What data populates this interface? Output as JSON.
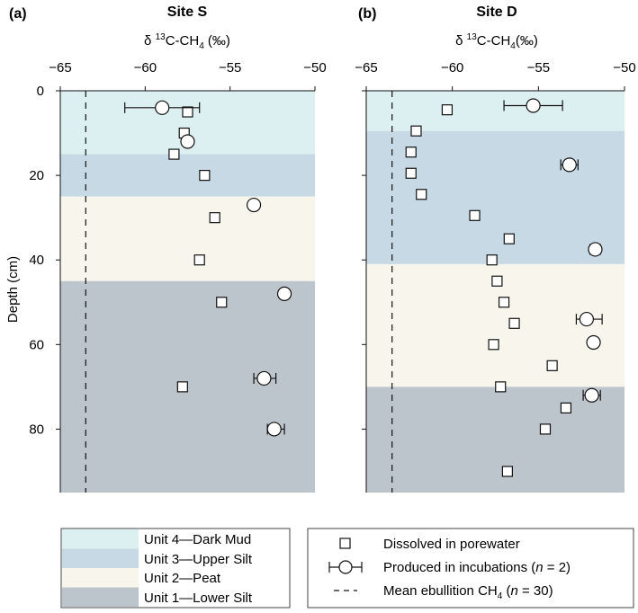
{
  "chart_data": [
    {
      "type": "scatter",
      "panel_label": "(a)",
      "title": "Site S",
      "xlabel_prefix": "δ ",
      "xlabel_sup": "13",
      "xlabel_mid": "C-CH",
      "xlabel_sub": "4",
      "xlabel_suffix": " (‰)",
      "ylabel": "Depth (cm)",
      "xlim": [
        -65,
        -50
      ],
      "ylim": [
        0,
        95
      ],
      "xticks": [
        -65,
        -60,
        -55,
        -50
      ],
      "yticks": [
        0,
        20,
        40,
        60,
        80
      ],
      "xaxis_position": "top",
      "y_inverted": true,
      "ebullition_mean": -63.5,
      "units": [
        {
          "name": "Unit 4—Dark Mud",
          "from": 0,
          "to": 15
        },
        {
          "name": "Unit 3—Upper Silt",
          "from": 15,
          "to": 25
        },
        {
          "name": "Unit 2—Peat",
          "from": 25,
          "to": 45
        },
        {
          "name": "Unit 1—Lower Silt",
          "from": 45,
          "to": 95
        }
      ],
      "series": [
        {
          "name": "Dissolved in porewater",
          "marker": "square",
          "points": [
            {
              "x": -57.5,
              "y": 5
            },
            {
              "x": -57.7,
              "y": 10
            },
            {
              "x": -58.3,
              "y": 15
            },
            {
              "x": -56.5,
              "y": 20
            },
            {
              "x": -55.9,
              "y": 30
            },
            {
              "x": -56.8,
              "y": 40
            },
            {
              "x": -55.5,
              "y": 50
            },
            {
              "x": -57.8,
              "y": 70
            }
          ]
        },
        {
          "name": "Produced in incubations (n = 2)",
          "marker": "circle",
          "points": [
            {
              "x": -59.0,
              "y": 4,
              "xmin": -61.2,
              "xmax": -56.8
            },
            {
              "x": -57.5,
              "y": 12
            },
            {
              "x": -53.6,
              "y": 27
            },
            {
              "x": -51.8,
              "y": 48
            },
            {
              "x": -53.0,
              "y": 68,
              "xmin": -53.6,
              "xmax": -52.3
            },
            {
              "x": -52.4,
              "y": 80,
              "xmin": -52.8,
              "xmax": -51.8
            }
          ]
        }
      ]
    },
    {
      "type": "scatter",
      "panel_label": "(b)",
      "title": "Site D",
      "xlabel_prefix": "δ ",
      "xlabel_sup": "13",
      "xlabel_mid": "C-CH",
      "xlabel_sub": "4",
      "xlabel_suffix": "(‰)",
      "ylabel": "",
      "xlim": [
        -65,
        -50
      ],
      "ylim": [
        0,
        95
      ],
      "xticks": [
        -65,
        -60,
        -55,
        -50
      ],
      "yticks": [
        0,
        20,
        40,
        60,
        80
      ],
      "xaxis_position": "top",
      "y_inverted": true,
      "ebullition_mean": -63.5,
      "units": [
        {
          "name": "Unit 4—Dark Mud",
          "from": 0,
          "to": 9.5
        },
        {
          "name": "Unit 3—Upper Silt",
          "from": 9.5,
          "to": 41
        },
        {
          "name": "Unit 2—Peat",
          "from": 41,
          "to": 70
        },
        {
          "name": "Unit 1—Lower Silt",
          "from": 70,
          "to": 95
        }
      ],
      "series": [
        {
          "name": "Dissolved in porewater",
          "marker": "square",
          "points": [
            {
              "x": -60.3,
              "y": 4.5
            },
            {
              "x": -62.1,
              "y": 9.5
            },
            {
              "x": -62.4,
              "y": 14.5
            },
            {
              "x": -62.4,
              "y": 19.5
            },
            {
              "x": -61.8,
              "y": 24.5
            },
            {
              "x": -58.7,
              "y": 29.5
            },
            {
              "x": -56.7,
              "y": 35
            },
            {
              "x": -57.7,
              "y": 40
            },
            {
              "x": -57.4,
              "y": 45
            },
            {
              "x": -57.0,
              "y": 50
            },
            {
              "x": -56.4,
              "y": 55
            },
            {
              "x": -57.6,
              "y": 60
            },
            {
              "x": -54.2,
              "y": 65
            },
            {
              "x": -57.2,
              "y": 70
            },
            {
              "x": -53.4,
              "y": 75
            },
            {
              "x": -54.6,
              "y": 80
            },
            {
              "x": -56.8,
              "y": 90
            }
          ]
        },
        {
          "name": "Produced in incubations (n = 2)",
          "marker": "circle",
          "points": [
            {
              "x": -55.3,
              "y": 3.5,
              "xmin": -57.0,
              "xmax": -53.6
            },
            {
              "x": -53.2,
              "y": 17.5,
              "xmin": -53.7,
              "xmax": -52.7
            },
            {
              "x": -51.7,
              "y": 37.5,
              "xmin": -52.0,
              "xmax": -51.4
            },
            {
              "x": -52.2,
              "y": 54,
              "xmin": -52.8,
              "xmax": -51.3
            },
            {
              "x": -51.8,
              "y": 59.5
            },
            {
              "x": -51.9,
              "y": 72,
              "xmin": -52.4,
              "xmax": -51.4
            }
          ]
        }
      ]
    }
  ],
  "colors": {
    "unit4": "#dceff1",
    "unit3": "#c6d9e4",
    "unit2": "#f8f6ec",
    "unit1": "#bcc4cc",
    "marker_fill": "#ffffff",
    "stroke": "#111111"
  },
  "legend_units": {
    "items": [
      "Unit 4—Dark Mud",
      "Unit 3—Upper Silt",
      "Unit 2—Peat",
      "Unit 1—Lower Silt"
    ]
  },
  "legend_symbols": {
    "dissolved": "Dissolved in porewater",
    "produced_prefix": "Produced in incubations (",
    "produced_n": "n",
    "produced_suffix": " = 2)",
    "mean_prefix": "Mean ebullition CH",
    "mean_sub": "4",
    "mean_open": " (",
    "mean_n": "n",
    "mean_suffix": " = 30)"
  }
}
